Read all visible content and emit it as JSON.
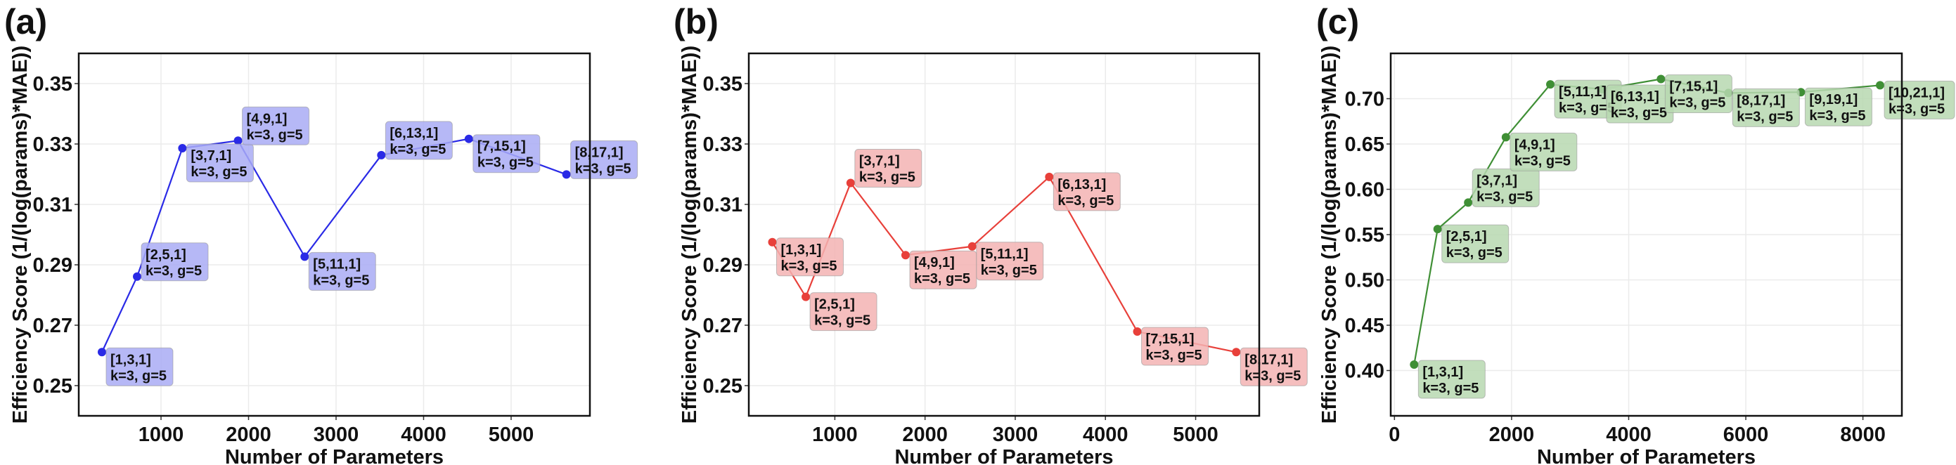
{
  "chart_data": [
    {
      "panel": "(a)",
      "type": "line",
      "xlabel": "Number of Parameters",
      "ylabel": "Efficiency Score (1/(log(params)*MAE))",
      "xlim": [
        60,
        5900
      ],
      "ylim": [
        0.24,
        0.36
      ],
      "xticks": [
        1000,
        2000,
        3000,
        4000,
        5000
      ],
      "yticks": [
        0.25,
        0.27,
        0.29,
        0.31,
        0.33,
        0.35
      ],
      "ytick_labels": [
        "0.25",
        "0.27",
        "0.29",
        "0.31",
        "0.33",
        "0.35"
      ],
      "grid": true,
      "color": "#2a2ae6",
      "label_fill": "#a9acf4",
      "points": [
        {
          "x": 325,
          "y": 0.2611,
          "label": "[1,3,1]",
          "sub": "k=3, g=5"
        },
        {
          "x": 727,
          "y": 0.2861,
          "label": "[2,5,1]",
          "sub": "k=3, g=5"
        },
        {
          "x": 1244,
          "y": 0.3286,
          "label": "[3,7,1]",
          "sub": "k=3, g=5"
        },
        {
          "x": 1880,
          "y": 0.3311,
          "label": "[4,9,1]",
          "sub": "k=3, g=5"
        },
        {
          "x": 2641,
          "y": 0.2927,
          "label": "[5,11,1]",
          "sub": "k=3, g=5"
        },
        {
          "x": 3517,
          "y": 0.3263,
          "label": "[6,13,1]",
          "sub": "k=3, g=5"
        },
        {
          "x": 4517,
          "y": 0.3317,
          "label": "[7,15,1]",
          "sub": "k=3, g=5"
        },
        {
          "x": 5632,
          "y": 0.3199,
          "label": "[8,17,1]",
          "sub": "k=3, g=5"
        }
      ]
    },
    {
      "panel": "(b)",
      "type": "line",
      "xlabel": "Number of Parameters",
      "ylabel": "Efficiency Score (1/(log(params)*MAE))",
      "xlim": [
        46,
        5705
      ],
      "ylim": [
        0.24,
        0.36
      ],
      "xticks": [
        1000,
        2000,
        3000,
        4000,
        5000
      ],
      "yticks": [
        0.25,
        0.27,
        0.29,
        0.31,
        0.33,
        0.35
      ],
      "ytick_labels": [
        "0.25",
        "0.27",
        "0.29",
        "0.31",
        "0.33",
        "0.35"
      ],
      "grid": true,
      "color": "#e8403a",
      "label_fill": "#f3b3b3",
      "points": [
        {
          "x": 307,
          "y": 0.2975,
          "label": "[1,3,1]",
          "sub": "k=3, g=5"
        },
        {
          "x": 678,
          "y": 0.2794,
          "label": "[2,5,1]",
          "sub": "k=3, g=5"
        },
        {
          "x": 1175,
          "y": 0.3171,
          "label": "[3,7,1]",
          "sub": "k=3, g=5"
        },
        {
          "x": 1784,
          "y": 0.2932,
          "label": "[4,9,1]",
          "sub": "k=3, g=5"
        },
        {
          "x": 2523,
          "y": 0.2961,
          "label": "[5,11,1]",
          "sub": "k=3, g=5"
        },
        {
          "x": 3377,
          "y": 0.3191,
          "label": "[6,13,1]",
          "sub": "k=3, g=5"
        },
        {
          "x": 4353,
          "y": 0.2679,
          "label": "[7,15,1]",
          "sub": "k=3, g=5"
        },
        {
          "x": 5450,
          "y": 0.2611,
          "label": "[8,17,1]",
          "sub": "k=3, g=5"
        }
      ]
    },
    {
      "panel": "(c)",
      "type": "line",
      "xlabel": "Number of Parameters",
      "ylabel": "Efficiency Score (1/(log(params)*MAE))",
      "xlim": [
        -64,
        8665
      ],
      "ylim": [
        0.35,
        0.75
      ],
      "xticks": [
        0,
        2000,
        4000,
        6000,
        8000
      ],
      "yticks": [
        0.4,
        0.45,
        0.5,
        0.55,
        0.6,
        0.65,
        0.7
      ],
      "ytick_labels": [
        "0.40",
        "0.45",
        "0.50",
        "0.55",
        "0.60",
        "0.65",
        "0.70"
      ],
      "grid": true,
      "color": "#3f8f35",
      "label_fill": "#b7d8b0",
      "points": [
        {
          "x": 336,
          "y": 0.4066,
          "label": "[1,3,1]",
          "sub": "k=3, g=5"
        },
        {
          "x": 737,
          "y": 0.5561,
          "label": "[2,5,1]",
          "sub": "k=3, g=5"
        },
        {
          "x": 1259,
          "y": 0.5854,
          "label": "[3,7,1]",
          "sub": "k=3, g=5"
        },
        {
          "x": 1903,
          "y": 0.6575,
          "label": "[4,9,1]",
          "sub": "k=3, g=5"
        },
        {
          "x": 2662,
          "y": 0.7158,
          "label": "[5,11,1]",
          "sub": "k=3, g=5"
        },
        {
          "x": 3549,
          "y": 0.7105,
          "label": "[6,13,1]",
          "sub": "k=3, g=5"
        },
        {
          "x": 4551,
          "y": 0.7217,
          "label": "[7,15,1]",
          "sub": "k=3, g=5"
        },
        {
          "x": 5703,
          "y": 0.7063,
          "label": "[8,17,1]",
          "sub": "k=3, g=5"
        },
        {
          "x": 6941,
          "y": 0.7072,
          "label": "[9,19,1]",
          "sub": "k=3, g=5"
        },
        {
          "x": 8293,
          "y": 0.7148,
          "label": "[10,21,1]",
          "sub": "k=3, g=5"
        }
      ]
    }
  ]
}
